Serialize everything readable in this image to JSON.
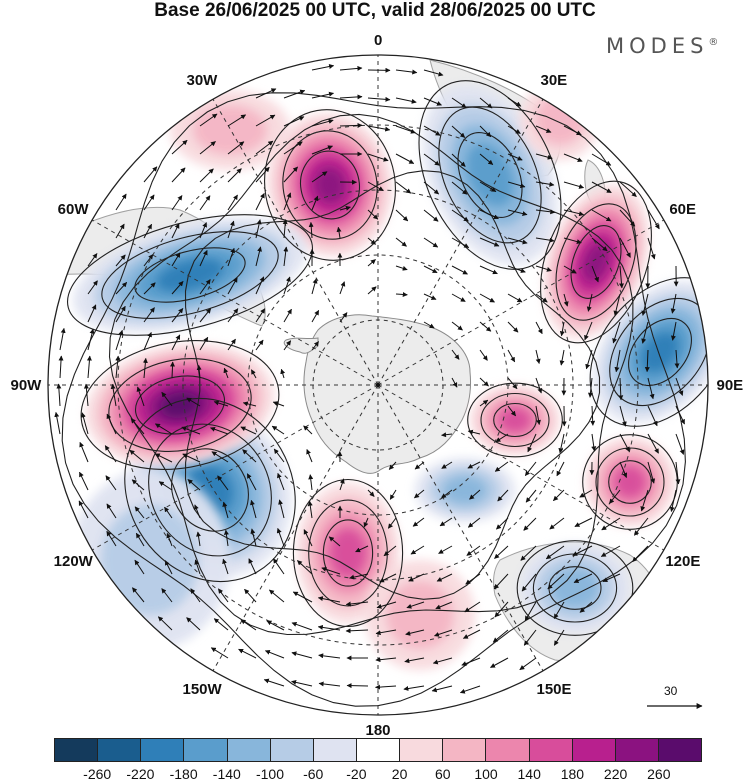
{
  "title": "Base 26/06/2025 00 UTC, valid 28/06/2025 00 UTC",
  "logo": {
    "text": "MODES",
    "mark": "®"
  },
  "map": {
    "projection": "south-polar-stereographic",
    "longitude_labels": [
      "0",
      "30E",
      "60E",
      "90E",
      "120E",
      "150E",
      "180",
      "150W",
      "120W",
      "90W",
      "60W",
      "30W"
    ],
    "wind_vector_reference": "30",
    "colors": {
      "land": "#e8e8e8",
      "antarctica": "#ececec",
      "coastline": "#8a8a8a",
      "grid": "#333333",
      "vector": "#111111"
    }
  },
  "colorbar": {
    "ticks": [
      "-260",
      "-220",
      "-180",
      "-140",
      "-100",
      "-60",
      "-20",
      "20",
      "60",
      "100",
      "140",
      "180",
      "220",
      "260"
    ],
    "colors": [
      "#143a5c",
      "#1a5d8e",
      "#2f7fb8",
      "#5a9dcc",
      "#88b6db",
      "#b6cce6",
      "#dfe3f1",
      "#ffffff",
      "#f8dade",
      "#f4b6c4",
      "#ec86ad",
      "#d84d9b",
      "#b8208e",
      "#8b1280",
      "#5a0c6c"
    ]
  },
  "anomaly_centers": [
    {
      "lon_label": "0",
      "sign": "positive",
      "level": 220
    },
    {
      "lon_label": "30E",
      "sign": "negative",
      "level": -140
    },
    {
      "lon_label": "60E",
      "sign": "positive",
      "level": 220
    },
    {
      "lon_label": "90E",
      "sign": "negative",
      "level": -180
    },
    {
      "lon_label": "90E",
      "sign": "positive",
      "level": 140
    },
    {
      "lon_label": "120E",
      "sign": "positive",
      "level": 140
    },
    {
      "lon_label": "150E",
      "sign": "negative",
      "level": -100
    },
    {
      "lon_label": "180",
      "sign": "positive",
      "level": 140
    },
    {
      "lon_label": "120W",
      "sign": "negative",
      "level": -180
    },
    {
      "lon_label": "90W",
      "sign": "positive",
      "level": 260
    },
    {
      "lon_label": "60W",
      "sign": "negative",
      "level": -180
    }
  ]
}
